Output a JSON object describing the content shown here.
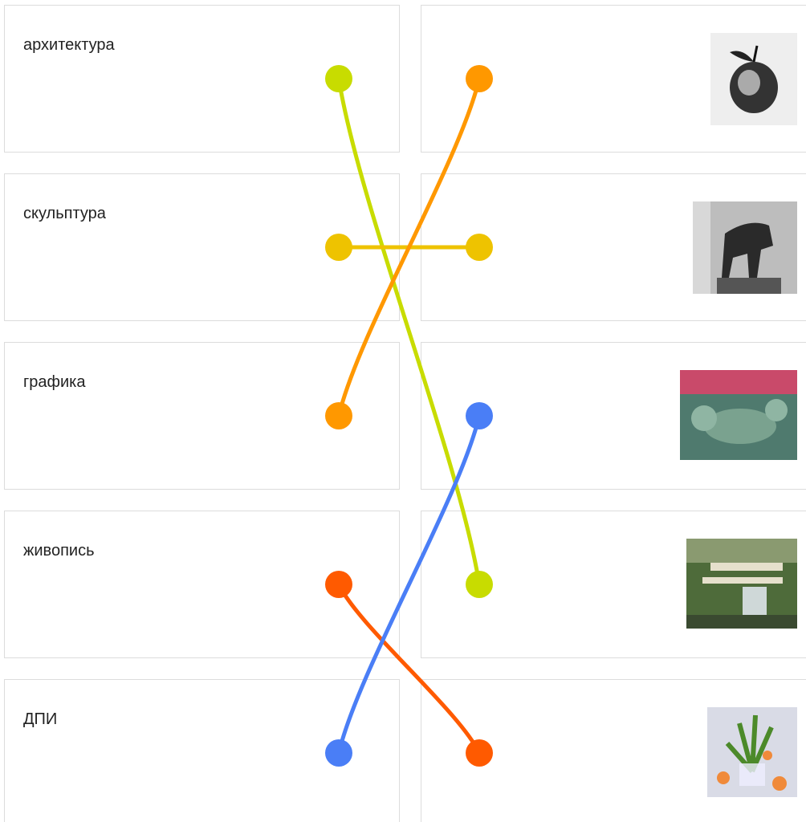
{
  "left_items": [
    "архитектура",
    "скульптура",
    "графика",
    "живопись",
    "ДПИ"
  ],
  "connections": [
    {
      "left": 0,
      "right": 3,
      "color": "#c8dc00"
    },
    {
      "left": 1,
      "right": 1,
      "color": "#eec300"
    },
    {
      "left": 2,
      "right": 0,
      "color": "#ff9800"
    },
    {
      "left": 3,
      "right": 4,
      "color": "#ff5a00"
    },
    {
      "left": 4,
      "right": 2,
      "color": "#4a7ef6"
    }
  ]
}
